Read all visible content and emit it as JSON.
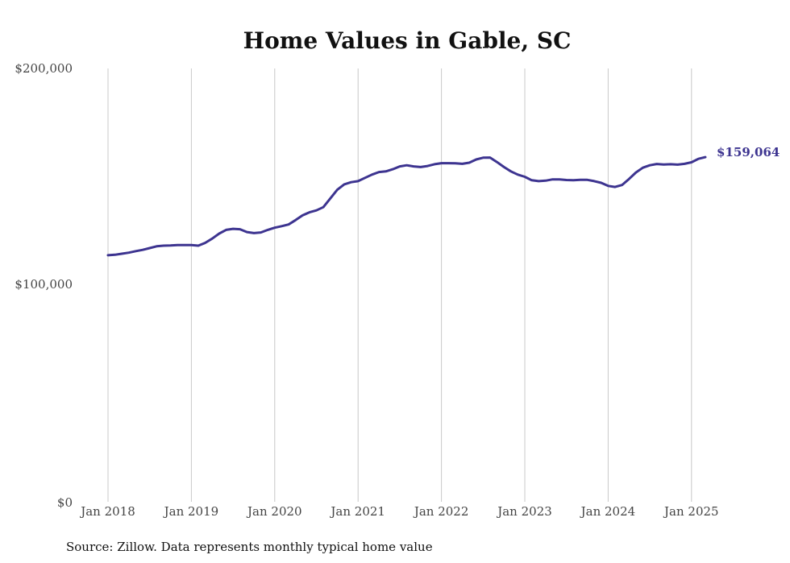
{
  "chart_data": {
    "type": "line",
    "title": "Home Values in Gable, SC",
    "source": "Source: Zillow. Data represents monthly typical home value",
    "x_tick_labels": [
      "Jan 2018",
      "Jan 2019",
      "Jan 2020",
      "Jan 2021",
      "Jan 2022",
      "Jan 2023",
      "Jan 2024",
      "Jan 2025"
    ],
    "y_tick_labels": [
      "$0",
      "$100,000",
      "$200,000"
    ],
    "ylim": [
      0,
      200000
    ],
    "xlim": [
      "2018-01",
      "2025-03"
    ],
    "grid": "vertical",
    "color": "#3d3490",
    "end_label": "$159,064",
    "series": [
      {
        "x": [
          "2018-01",
          "2018-02",
          "2018-03",
          "2018-04",
          "2018-05",
          "2018-06",
          "2018-07",
          "2018-08",
          "2018-09",
          "2018-10",
          "2018-11",
          "2018-12",
          "2019-01",
          "2019-02",
          "2019-03",
          "2019-04",
          "2019-05",
          "2019-06",
          "2019-07",
          "2019-08",
          "2019-09",
          "2019-10",
          "2019-11",
          "2019-12",
          "2020-01",
          "2020-02",
          "2020-03",
          "2020-04",
          "2020-05",
          "2020-06",
          "2020-07",
          "2020-08",
          "2020-09",
          "2020-10",
          "2020-11",
          "2020-12",
          "2021-01",
          "2021-02",
          "2021-03",
          "2021-04",
          "2021-05",
          "2021-06",
          "2021-07",
          "2021-08",
          "2021-09",
          "2021-10",
          "2021-11",
          "2021-12",
          "2022-01",
          "2022-02",
          "2022-03",
          "2022-04",
          "2022-05",
          "2022-06",
          "2022-07",
          "2022-08",
          "2022-09",
          "2022-10",
          "2022-11",
          "2022-12",
          "2023-01",
          "2023-02",
          "2023-03",
          "2023-04",
          "2023-05",
          "2023-06",
          "2023-07",
          "2023-08",
          "2023-09",
          "2023-10",
          "2023-11",
          "2023-12",
          "2024-01",
          "2024-02",
          "2024-03",
          "2024-04",
          "2024-05",
          "2024-06",
          "2024-07",
          "2024-08",
          "2024-09",
          "2024-10",
          "2024-11",
          "2024-12",
          "2025-01",
          "2025-02",
          "2025-03"
        ],
        "y": [
          113800,
          114000,
          114500,
          115000,
          115700,
          116300,
          117100,
          117900,
          118200,
          118300,
          118500,
          118500,
          118500,
          118200,
          119500,
          121500,
          123800,
          125500,
          126000,
          125800,
          124500,
          124000,
          124300,
          125500,
          126500,
          127200,
          128000,
          130000,
          132200,
          133600,
          134500,
          136000,
          140000,
          144000,
          146500,
          147500,
          148000,
          149500,
          151000,
          152200,
          152500,
          153500,
          154800,
          155300,
          154800,
          154500,
          155000,
          155800,
          156300,
          156300,
          156200,
          156000,
          156500,
          158000,
          158800,
          158900,
          156800,
          154500,
          152500,
          151000,
          150000,
          148400,
          148000,
          148200,
          148800,
          148800,
          148500,
          148400,
          148600,
          148600,
          148000,
          147200,
          145800,
          145300,
          146200,
          149000,
          152000,
          154200,
          155300,
          155900,
          155700,
          155800,
          155600,
          156000,
          156700,
          158300,
          159064
        ]
      }
    ]
  }
}
